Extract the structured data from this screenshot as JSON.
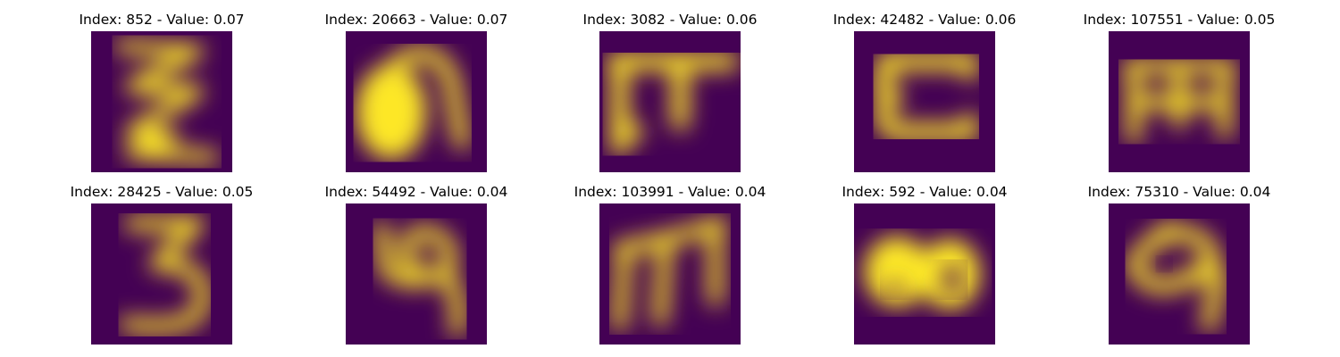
{
  "colors": {
    "background": "#440154",
    "glyph": "#fde725",
    "edge": "#21918c"
  },
  "panels": [
    {
      "title": "Index: 852 - Value: 0.07",
      "glyph": "zigzag-z-glyph"
    },
    {
      "title": "Index: 20663 - Value: 0.07",
      "glyph": "loop-n-glyph"
    },
    {
      "title": "Index: 3082 - Value: 0.06",
      "glyph": "pi-t-glyph"
    },
    {
      "title": "Index: 42482 - Value: 0.06",
      "glyph": "c-bracket-glyph"
    },
    {
      "title": "Index: 107551 - Value: 0.05",
      "glyph": "m-bar-glyph"
    },
    {
      "title": "Index: 28425 - Value: 0.05",
      "glyph": "three-glyph"
    },
    {
      "title": "Index: 54492 - Value: 0.04",
      "glyph": "loop-tail-glyph"
    },
    {
      "title": "Index: 103991 - Value: 0.04",
      "glyph": "m-legs-glyph"
    },
    {
      "title": "Index: 592 - Value: 0.04",
      "glyph": "double-o-glyph"
    },
    {
      "title": "Index: 75310 - Value: 0.04",
      "glyph": "curl-glyph"
    }
  ]
}
